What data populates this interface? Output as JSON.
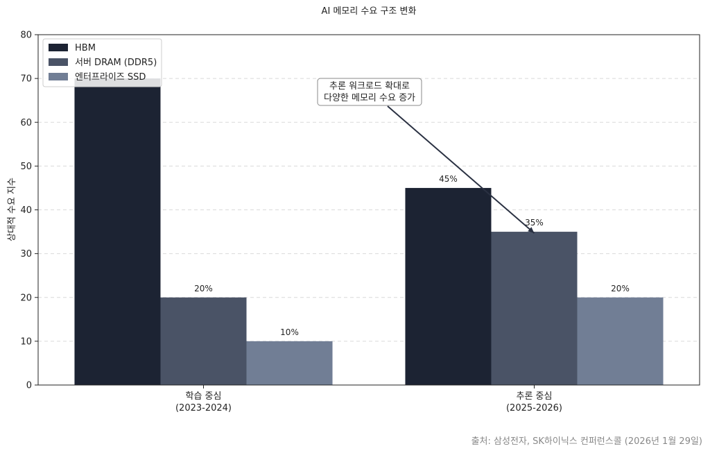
{
  "chart_data": {
    "type": "bar",
    "title": "AI 메모리 수요 구조 변화",
    "ylabel": "상대적 수요 지수",
    "xlabel": "",
    "ylim": [
      0,
      80
    ],
    "yticks": [
      0,
      10,
      20,
      30,
      40,
      50,
      60,
      70,
      80
    ],
    "grid": "y-dashed",
    "legend_position": "top-left",
    "categories": [
      [
        "학습 중심",
        "(2023-2024)"
      ],
      [
        "추론 중심",
        "(2025-2026)"
      ]
    ],
    "series": [
      {
        "name": "HBM",
        "color": "#1c2333",
        "values": [
          70,
          45
        ],
        "labels": [
          "",
          "45%"
        ]
      },
      {
        "name": "서버 DRAM (DDR5)",
        "color": "#4a5366",
        "values": [
          20,
          35
        ],
        "labels": [
          "20%",
          "35%"
        ]
      },
      {
        "name": "엔터프라이즈 SSD",
        "color": "#717e95",
        "values": [
          10,
          20
        ],
        "labels": [
          "10%",
          "20%"
        ]
      }
    ],
    "annotation": {
      "lines": [
        "추론 워크로드 확대로",
        "다양한 메모리 수요 증가"
      ],
      "points_to": {
        "category_index": 1,
        "series_index": 1,
        "value": 35
      }
    },
    "source": "출처: 삼성전자, SK하이닉스 컨퍼런스콜 (2026년 1월 29일)"
  }
}
